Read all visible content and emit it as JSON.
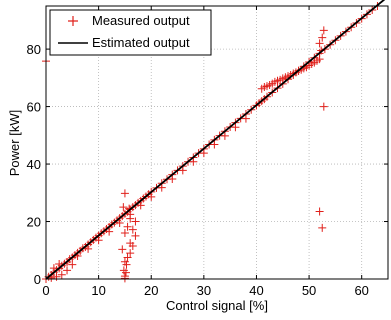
{
  "chart_data": {
    "type": "scatter",
    "title": "",
    "xlabel": "Control signal [%]",
    "ylabel": "Power [kW]",
    "xlim": [
      0,
      65
    ],
    "ylim": [
      0,
      95
    ],
    "x_ticks": [
      0,
      10,
      20,
      30,
      40,
      50,
      60
    ],
    "y_ticks": [
      0,
      20,
      40,
      60,
      80
    ],
    "x_tick_labels": [
      "0",
      "10",
      "20",
      "30",
      "40",
      "50",
      "60"
    ],
    "y_tick_labels": [
      "0",
      "20",
      "40",
      "60",
      "80"
    ],
    "grid": true,
    "legend": {
      "position": "top-left",
      "entries": [
        "Measured output",
        "Estimated output"
      ]
    },
    "colors": {
      "measured": "#e0201b",
      "estimated": "#000000",
      "grid": "#b4b4b4"
    },
    "series": [
      {
        "name": "Measured output",
        "marker": "+",
        "points": [
          [
            0.0,
            75.8
          ],
          [
            0.0,
            0.0
          ],
          [
            0.5,
            0.8
          ],
          [
            1.0,
            1.4
          ],
          [
            1.5,
            2.4
          ],
          [
            2.0,
            3.1
          ],
          [
            2.5,
            3.7
          ],
          [
            3.0,
            4.6
          ],
          [
            3.5,
            5.3
          ],
          [
            4.0,
            5.9
          ],
          [
            4.5,
            6.9
          ],
          [
            5.0,
            7.5
          ],
          [
            5.5,
            8.3
          ],
          [
            6.0,
            9.1
          ],
          [
            6.5,
            9.8
          ],
          [
            7.0,
            10.7
          ],
          [
            7.5,
            11.2
          ],
          [
            8.0,
            12.0
          ],
          [
            8.5,
            12.8
          ],
          [
            9.0,
            13.6
          ],
          [
            9.5,
            14.4
          ],
          [
            10.0,
            15.1
          ],
          [
            10.5,
            15.9
          ],
          [
            11.0,
            16.6
          ],
          [
            11.5,
            17.4
          ],
          [
            12.0,
            18.1
          ],
          [
            12.5,
            19.0
          ],
          [
            13.0,
            19.6
          ],
          [
            13.5,
            20.4
          ],
          [
            14.0,
            21.2
          ],
          [
            14.5,
            21.9
          ],
          [
            15.0,
            22.7
          ],
          [
            15.5,
            23.4
          ],
          [
            16.0,
            24.2
          ],
          [
            16.5,
            25.0
          ],
          [
            17.0,
            25.7
          ],
          [
            17.5,
            26.5
          ],
          [
            18.0,
            27.2
          ],
          [
            18.5,
            28.0
          ],
          [
            19.0,
            28.7
          ],
          [
            19.5,
            29.5
          ],
          [
            20.0,
            30.3
          ],
          [
            21.0,
            31.7
          ],
          [
            22.0,
            33.3
          ],
          [
            23.0,
            34.7
          ],
          [
            24.0,
            36.3
          ],
          [
            25.0,
            37.8
          ],
          [
            26.0,
            39.3
          ],
          [
            27.0,
            40.8
          ],
          [
            28.0,
            42.3
          ],
          [
            29.0,
            43.8
          ],
          [
            30.0,
            45.3
          ],
          [
            31.0,
            46.8
          ],
          [
            32.0,
            48.4
          ],
          [
            33.0,
            49.9
          ],
          [
            34.0,
            51.4
          ],
          [
            35.0,
            52.9
          ],
          [
            36.0,
            54.4
          ],
          [
            37.0,
            55.9
          ],
          [
            38.0,
            57.4
          ],
          [
            39.0,
            58.9
          ],
          [
            40.0,
            60.4
          ],
          [
            40.5,
            61.2
          ],
          [
            41.0,
            61.9
          ],
          [
            41.5,
            62.6
          ],
          [
            42.0,
            63.4
          ],
          [
            43.0,
            64.9
          ],
          [
            44.0,
            66.4
          ],
          [
            45.0,
            67.9
          ],
          [
            46.0,
            69.5
          ],
          [
            47.0,
            71.0
          ],
          [
            48.0,
            72.5
          ],
          [
            49.0,
            74.0
          ],
          [
            50.0,
            75.5
          ],
          [
            51.0,
            77.0
          ],
          [
            52.0,
            78.5
          ],
          [
            53.0,
            80.0
          ],
          [
            54.0,
            81.5
          ],
          [
            55.0,
            83.1
          ],
          [
            56.0,
            84.6
          ],
          [
            57.0,
            86.1
          ],
          [
            58.0,
            87.6
          ],
          [
            59.0,
            89.1
          ],
          [
            60.0,
            90.6
          ],
          [
            61.0,
            92.1
          ],
          [
            62.0,
            93.6
          ],
          [
            63.0,
            95.0
          ],
          [
            1.0,
            0.4
          ],
          [
            2.0,
            0.8
          ],
          [
            3.0,
            1.5
          ],
          [
            4.0,
            3.0
          ],
          [
            5.0,
            5.0
          ],
          [
            1.5,
            3.8
          ],
          [
            2.5,
            5.2
          ],
          [
            6.0,
            8.0
          ],
          [
            8.0,
            10.5
          ],
          [
            10.0,
            13.5
          ],
          [
            12.0,
            16.5
          ],
          [
            14.0,
            19.5
          ],
          [
            16.0,
            22.5
          ],
          [
            18.0,
            25.6
          ],
          [
            20.0,
            28.6
          ],
          [
            22.0,
            31.8
          ],
          [
            24.0,
            34.8
          ],
          [
            26.0,
            37.8
          ],
          [
            28.0,
            40.8
          ],
          [
            30.0,
            43.8
          ],
          [
            32.0,
            46.8
          ],
          [
            34.0,
            49.8
          ],
          [
            36.0,
            52.8
          ],
          [
            38.0,
            55.8
          ],
          [
            41.0,
            66.2
          ],
          [
            41.5,
            66.8
          ],
          [
            42.0,
            67.1
          ],
          [
            42.5,
            67.5
          ],
          [
            43.0,
            68.0
          ],
          [
            43.5,
            68.6
          ],
          [
            44.0,
            69.0
          ],
          [
            44.5,
            69.3
          ],
          [
            45.0,
            69.8
          ],
          [
            45.5,
            70.2
          ],
          [
            46.0,
            70.6
          ],
          [
            46.5,
            71.0
          ],
          [
            47.0,
            71.5
          ],
          [
            47.5,
            71.9
          ],
          [
            48.0,
            72.4
          ],
          [
            48.5,
            72.8
          ],
          [
            49.0,
            73.3
          ],
          [
            49.5,
            73.7
          ],
          [
            50.0,
            74.3
          ],
          [
            50.5,
            74.8
          ],
          [
            51.0,
            75.3
          ],
          [
            51.5,
            75.9
          ],
          [
            52.0,
            76.5
          ],
          [
            15.0,
            0.2
          ],
          [
            15.0,
            1.0
          ],
          [
            15.2,
            2.2
          ],
          [
            14.8,
            3.0
          ],
          [
            15.3,
            5.0
          ],
          [
            15.0,
            6.0
          ],
          [
            15.5,
            7.5
          ],
          [
            16.0,
            9.0
          ],
          [
            14.5,
            10.3
          ],
          [
            16.5,
            11.5
          ],
          [
            16.0,
            12.5
          ],
          [
            17.0,
            15.0
          ],
          [
            15.0,
            16.0
          ],
          [
            16.5,
            17.2
          ],
          [
            15.5,
            18.2
          ],
          [
            17.0,
            20.0
          ],
          [
            16.0,
            21.0
          ],
          [
            15.0,
            29.8
          ],
          [
            14.7,
            25.0
          ],
          [
            15.8,
            24.5
          ],
          [
            52.5,
            17.8
          ],
          [
            52.0,
            23.5
          ],
          [
            52.8,
            60.0
          ],
          [
            52.5,
            84.0
          ],
          [
            52.8,
            86.5
          ],
          [
            52.0,
            82.0
          ],
          [
            52.3,
            79.5
          ]
        ]
      },
      {
        "name": "Estimated output",
        "line": [
          [
            0,
            0
          ],
          [
            65,
            98.3
          ]
        ]
      }
    ]
  }
}
